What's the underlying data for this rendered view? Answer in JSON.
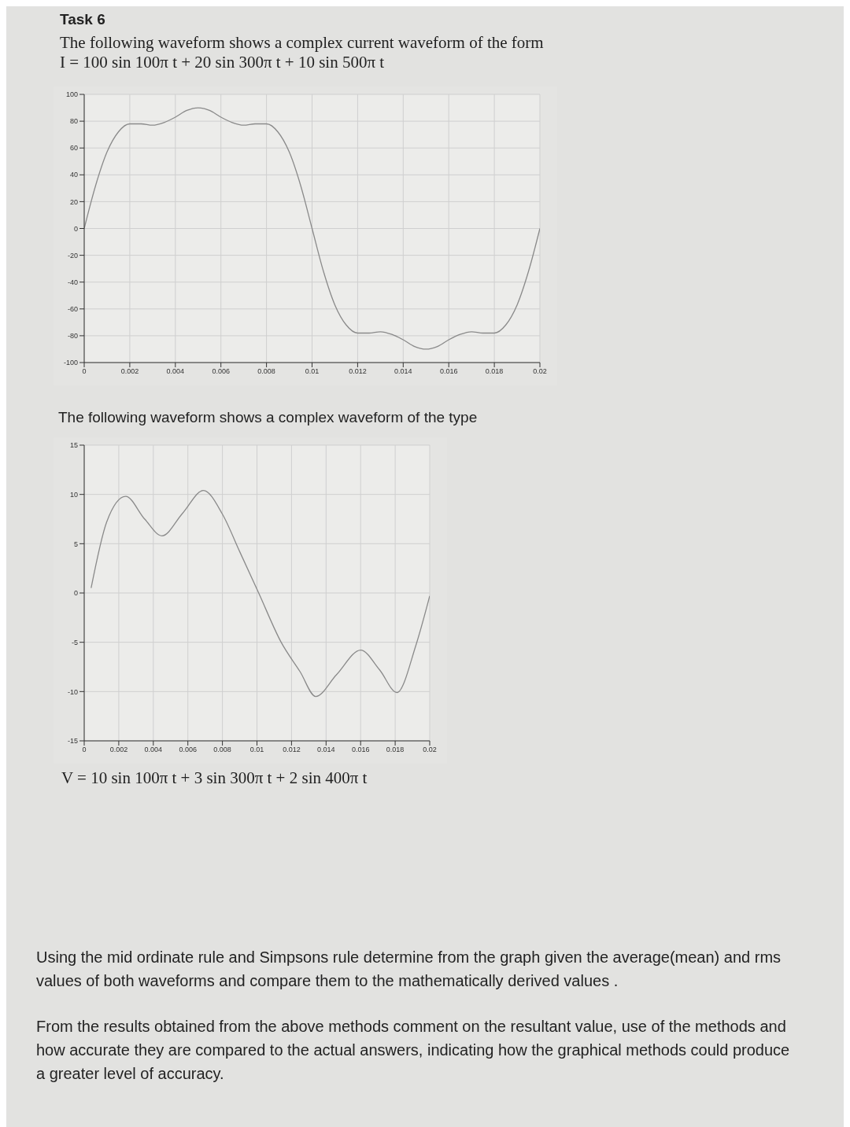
{
  "chart_data": [
    {
      "type": "line",
      "title": "Task 6",
      "subtitle": "The following waveform shows a complex current waveform of the form",
      "annotations": [
        "I = 100 sin 100π t + 20 sin 300π t  + 10 sin 500π t"
      ],
      "x": [
        0,
        0.0005,
        0.001,
        0.0015,
        0.002,
        0.0025,
        0.003,
        0.0035,
        0.004,
        0.0045,
        0.005,
        0.0055,
        0.006,
        0.0065,
        0.007,
        0.0075,
        0.008,
        0.0085,
        0.009,
        0.0095,
        0.01,
        0.0105,
        0.011,
        0.0115,
        0.012,
        0.0125,
        0.013,
        0.0135,
        0.014,
        0.0145,
        0.015,
        0.0155,
        0.016,
        0.0165,
        0.017,
        0.0175,
        0.018,
        0.0185,
        0.019,
        0.0195,
        0.02
      ],
      "series": [
        {
          "color": "#8a8a8a",
          "values": [
            0,
            32,
            57,
            72,
            78,
            78,
            77,
            79,
            83,
            88,
            90,
            88,
            83,
            79,
            77,
            78,
            78,
            72,
            57,
            32,
            0,
            -32,
            -57,
            -72,
            -78,
            -78,
            -77,
            -79,
            -83,
            -88,
            -90,
            -88,
            -83,
            -79,
            -77,
            -78,
            -78,
            -72,
            -57,
            -32,
            0
          ]
        }
      ],
      "xlim": [
        0,
        0.02
      ],
      "xticks": [
        0,
        0.002,
        0.004,
        0.006,
        0.008,
        0.01,
        0.012,
        0.014,
        0.016,
        0.018,
        0.02
      ],
      "ylim": [
        -100,
        100
      ],
      "yticks": [
        -100,
        -80,
        -60,
        -40,
        -20,
        0,
        20,
        40,
        60,
        80,
        100
      ],
      "grid": true,
      "marker": "none",
      "line_style": "solid"
    },
    {
      "type": "line",
      "title": "The following waveform shows a complex waveform of the type",
      "annotations": [
        "V = 10 sin 100π t + 3 sin 300π t  + 2 sin 400π t",
        "Using the mid ordinate rule and Simpsons rule determine from the graph given the average(mean) and rms values of both waveforms  and compare them to the mathematically derived values .",
        "From the results obtained from the above methods comment on the resultant value, use of the methods and how accurate they are compared to the actual answers, indicating how the graphical methods could  produce a greater level of accuracy."
      ],
      "x": [
        0.0004,
        0.0013,
        0.0024,
        0.0035,
        0.0045,
        0.0057,
        0.0069,
        0.008,
        0.009,
        0.0101,
        0.0114,
        0.0125,
        0.0134,
        0.0146,
        0.016,
        0.0171,
        0.0181,
        0.0192,
        0.02
      ],
      "series": [
        {
          "color": "#8a8a8a",
          "values": [
            0.5,
            7.2,
            9.8,
            7.5,
            5.8,
            8.1,
            10.4,
            8,
            4.2,
            0,
            -5,
            -8,
            -10.5,
            -8.3,
            -5.8,
            -7.8,
            -10.1,
            -5.3,
            -0.3
          ]
        }
      ],
      "xlim": [
        0,
        0.02
      ],
      "xticks": [
        0,
        0.002,
        0.004,
        0.006,
        0.008,
        0.01,
        0.012,
        0.014,
        0.016,
        0.018,
        0.02
      ],
      "ylim": [
        -15,
        15
      ],
      "yticks": [
        -15,
        -10,
        -5,
        0,
        5,
        10,
        15
      ],
      "grid": true,
      "marker": "none",
      "line_style": "solid"
    }
  ]
}
